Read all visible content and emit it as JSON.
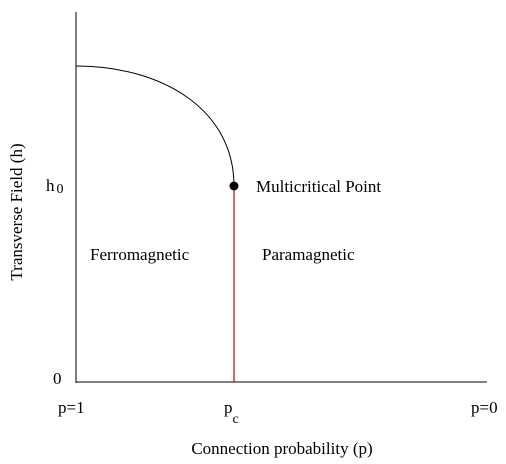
{
  "diagram": {
    "y_axis_label": "Transverse Field (h)",
    "x_axis_label": "Connection probability (p)",
    "y_ticks": {
      "h0": {
        "base": "h",
        "sub": "0"
      },
      "zero": "0"
    },
    "x_ticks": {
      "left": "p=1",
      "critical": {
        "base": "p",
        "sub": "c"
      },
      "right": "p=0"
    },
    "regions": {
      "left": "Ferromagnetic",
      "right": "Paramagnetic"
    },
    "point_label": "Multicritical Point"
  }
}
